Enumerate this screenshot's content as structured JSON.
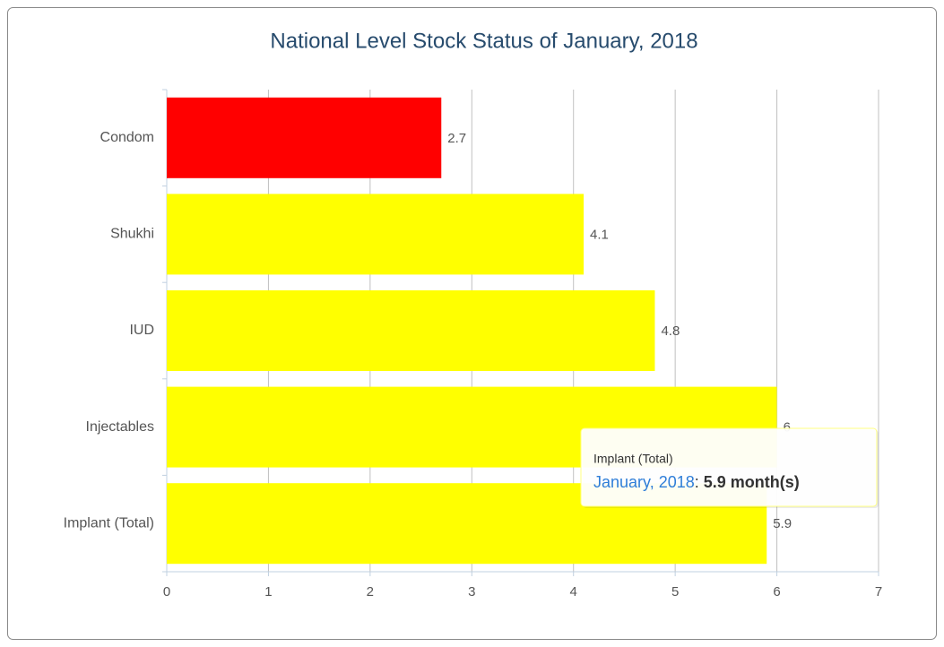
{
  "chart_data": {
    "type": "bar",
    "title": "National Level Stock Status of January, 2018",
    "categories": [
      "Condom",
      "Shukhi",
      "IUD",
      "Injectables",
      "Implant (Total)"
    ],
    "series": [
      {
        "name": "January, 2018",
        "colors": [
          "#ff0000",
          "#ffff00",
          "#ffff00",
          "#ffff00",
          "#ffff00"
        ],
        "values": [
          2.7,
          4.1,
          4.8,
          6,
          5.9
        ]
      }
    ],
    "xlim": [
      0,
      7
    ],
    "xticks": [
      0,
      1,
      2,
      3,
      4,
      5,
      6,
      7
    ],
    "grid": true,
    "tooltip": {
      "category": "Implant (Total)",
      "series": "January, 2018",
      "separator": ":",
      "value": "5.9 month(s)"
    }
  }
}
